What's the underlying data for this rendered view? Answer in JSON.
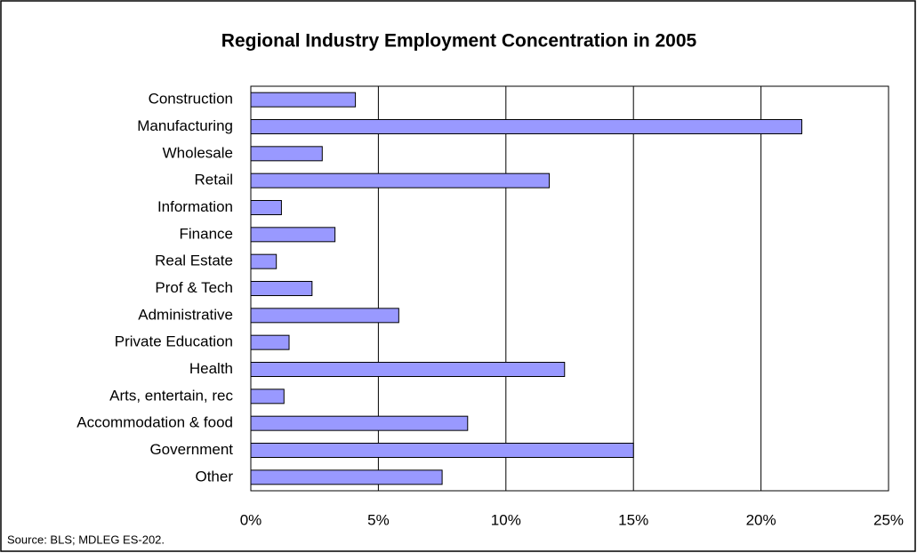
{
  "chart_data": {
    "type": "bar",
    "orientation": "horizontal",
    "title": "Regional Industry Employment Concentration in 2005",
    "categories": [
      "Construction",
      "Manufacturing",
      "Wholesale",
      "Retail",
      "Information",
      "Finance",
      "Real Estate",
      "Prof & Tech",
      "Administrative",
      "Private Education",
      "Health",
      "Arts, entertain, rec",
      "Accommodation & food",
      "Government",
      "Other"
    ],
    "values": [
      4.1,
      21.6,
      2.8,
      11.7,
      1.2,
      3.3,
      1.0,
      2.4,
      5.8,
      1.5,
      12.3,
      1.3,
      8.5,
      15.0,
      7.5
    ],
    "color": "#9999ff",
    "xlim": [
      0,
      25
    ],
    "xticks": [
      {
        "value": 0,
        "label": "0%"
      },
      {
        "value": 5,
        "label": "5%"
      },
      {
        "value": 10,
        "label": "10%"
      },
      {
        "value": 15,
        "label": "15%"
      },
      {
        "value": 20,
        "label": "20%"
      },
      {
        "value": 25,
        "label": "25%"
      }
    ],
    "grid": true,
    "source": "Source: BLS; MDLEG ES-202."
  }
}
